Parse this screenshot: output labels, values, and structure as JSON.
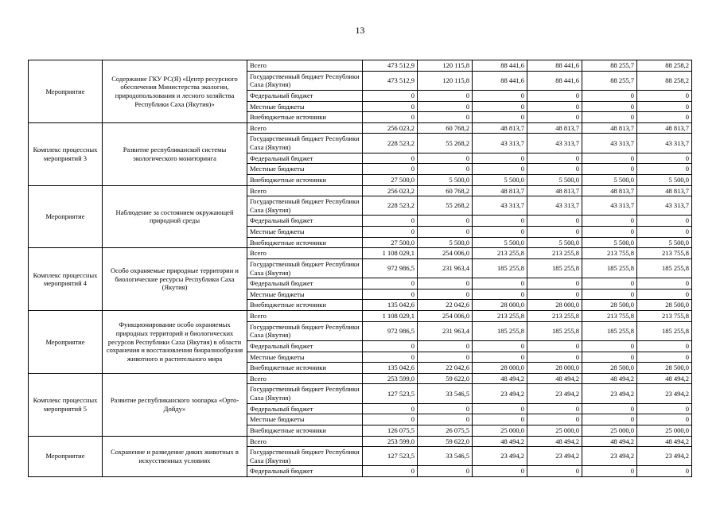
{
  "page": {
    "number": "13"
  },
  "table": {
    "groups": [
      {
        "type": "Мероприятие",
        "description": "Содержание ГКУ РС(Я) «Центр ресурсного обеспечения Министерства экологии, природопользования и лесного хозяйства Республики Саха (Якутия)»",
        "rows": [
          {
            "source": "Всего",
            "values": [
              "473 512,9",
              "120 115,8",
              "88 441,6",
              "88 441,6",
              "88 255,7",
              "88 258,2"
            ]
          },
          {
            "source": "Государственный бюджет Республики Саха (Якутия)",
            "values": [
              "473 512,9",
              "120 115,8",
              "88 441,6",
              "88 441,6",
              "88 255,7",
              "88 258,2"
            ]
          },
          {
            "source": "Федеральный бюджет",
            "values": [
              "0",
              "0",
              "0",
              "0",
              "0",
              "0"
            ]
          },
          {
            "source": "Местные бюджеты",
            "values": [
              "0",
              "0",
              "0",
              "0",
              "0",
              "0"
            ]
          },
          {
            "source": "Внебюджетные источники",
            "values": [
              "0",
              "0",
              "0",
              "0",
              "0",
              "0"
            ]
          }
        ]
      },
      {
        "type": "Комплекс процессных мероприятий 3",
        "description": "Развитие республиканской системы экологического мониторинга",
        "rows": [
          {
            "source": "Всего",
            "values": [
              "256 023,2",
              "60 768,2",
              "48 813,7",
              "48 813,7",
              "48 813,7",
              "48 813,7"
            ]
          },
          {
            "source": "Государственный бюджет Республики Саха (Якутия)",
            "values": [
              "228 523,2",
              "55 268,2",
              "43 313,7",
              "43 313,7",
              "43 313,7",
              "43 313,7"
            ]
          },
          {
            "source": "Федеральный бюджет",
            "values": [
              "0",
              "0",
              "0",
              "0",
              "0",
              "0"
            ]
          },
          {
            "source": "Местные бюджеты",
            "values": [
              "0",
              "0",
              "0",
              "0",
              "0",
              "0"
            ]
          },
          {
            "source": "Внебюджетные источники",
            "values": [
              "27 500,0",
              "5 500,0",
              "5 500,0",
              "5 500,0",
              "5 500,0",
              "5 500,0"
            ]
          }
        ]
      },
      {
        "type": "Мероприятие",
        "description": "Наблюдение за состоянием окружающей природной среды",
        "rows": [
          {
            "source": "Всего",
            "values": [
              "256 023,2",
              "60 768,2",
              "48 813,7",
              "48 813,7",
              "48 813,7",
              "48 813,7"
            ]
          },
          {
            "source": "Государственный бюджет Республики Саха (Якутия)",
            "values": [
              "228 523,2",
              "55 268,2",
              "43 313,7",
              "43 313,7",
              "43 313,7",
              "43 313,7"
            ]
          },
          {
            "source": "Федеральный бюджет",
            "values": [
              "0",
              "0",
              "0",
              "0",
              "0",
              "0"
            ]
          },
          {
            "source": "Местные бюджеты",
            "values": [
              "0",
              "0",
              "0",
              "0",
              "0",
              "0"
            ]
          },
          {
            "source": "Внебюджетные источники",
            "values": [
              "27 500,0",
              "5 500,0",
              "5 500,0",
              "5 500,0",
              "5 500,0",
              "5 500,0"
            ]
          }
        ]
      },
      {
        "type": "Комплекс процессных мероприятий 4",
        "description": "Особо охраняемые природные территории и биологические ресурсы Республики Саха (Якутия)",
        "rows": [
          {
            "source": "Всего",
            "values": [
              "1 108 029,1",
              "254 006,0",
              "213 255,8",
              "213 255,8",
              "213 755,8",
              "213 755,8"
            ]
          },
          {
            "source": "Государственный бюджет Республики Саха (Якутия)",
            "values": [
              "972 986,5",
              "231 963,4",
              "185 255,8",
              "185 255,8",
              "185 255,8",
              "185 255,8"
            ]
          },
          {
            "source": "Федеральный бюджет",
            "values": [
              "0",
              "0",
              "0",
              "0",
              "0",
              "0"
            ]
          },
          {
            "source": "Местные бюджеты",
            "values": [
              "0",
              "0",
              "0",
              "0",
              "0",
              "0"
            ]
          },
          {
            "source": "Внебюджетные источники",
            "values": [
              "135 042,6",
              "22 042,6",
              "28 000,0",
              "28 000,0",
              "28 500,0",
              "28 500,0"
            ]
          }
        ]
      },
      {
        "type": "Мероприятие",
        "description": "Функционирование особо охраняемых природных территорий и биологических ресурсов Республики Саха (Якутия) в области сохранения и восстановления биоразнообразия животного и растительного мира",
        "rows": [
          {
            "source": "Всего",
            "values": [
              "1 108 029,1",
              "254 006,0",
              "213 255,8",
              "213 255,8",
              "213 755,8",
              "213 755,8"
            ]
          },
          {
            "source": "Государственный бюджет Республики Саха (Якутия)",
            "values": [
              "972 986,5",
              "231 963,4",
              "185 255,8",
              "185 255,8",
              "185 255,8",
              "185 255,8"
            ]
          },
          {
            "source": "Федеральный бюджет",
            "values": [
              "0",
              "0",
              "0",
              "0",
              "0",
              "0"
            ]
          },
          {
            "source": "Местные бюджеты",
            "values": [
              "0",
              "0",
              "0",
              "0",
              "0",
              "0"
            ]
          },
          {
            "source": "Внебюджетные источники",
            "values": [
              "135 042,6",
              "22 042,6",
              "28 000,0",
              "28 000,0",
              "28 500,0",
              "28 500,0"
            ]
          }
        ]
      },
      {
        "type": "Комплекс процессных мероприятий 5",
        "description": "Развитие республиканского зоопарка «Орто-Дойду»",
        "rows": [
          {
            "source": "Всего",
            "values": [
              "253 599,0",
              "59 622,0",
              "48 494,2",
              "48 494,2",
              "48 494,2",
              "48 494,2"
            ]
          },
          {
            "source": "Государственный бюджет Республики Саха (Якутия)",
            "values": [
              "127 523,5",
              "33 546,5",
              "23 494,2",
              "23 494,2",
              "23 494,2",
              "23 494,2"
            ]
          },
          {
            "source": "Федеральный бюджет",
            "values": [
              "0",
              "0",
              "0",
              "0",
              "0",
              "0"
            ]
          },
          {
            "source": "Местные бюджеты",
            "values": [
              "0",
              "0",
              "0",
              "0",
              "0",
              "0"
            ]
          },
          {
            "source": "Внебюджетные источники",
            "values": [
              "126 075,5",
              "26 075,5",
              "25 000,0",
              "25 000,0",
              "25 000,0",
              "25 000,0"
            ]
          }
        ]
      },
      {
        "type": "Мероприятие",
        "description": "Сохранение и разведение диких животных в искусственных условиях",
        "rows": [
          {
            "source": "Всего",
            "values": [
              "253 599,0",
              "59 622,0",
              "48 494,2",
              "48 494,2",
              "48 494,2",
              "48 494,2"
            ]
          },
          {
            "source": "Государственный бюджет Республики Саха (Якутия)",
            "values": [
              "127 523,5",
              "33 546,5",
              "23 494,2",
              "23 494,2",
              "23 494,2",
              "23 494,2"
            ]
          },
          {
            "source": "Федеральный бюджет",
            "values": [
              "0",
              "0",
              "0",
              "0",
              "0",
              "0"
            ]
          }
        ]
      }
    ]
  }
}
